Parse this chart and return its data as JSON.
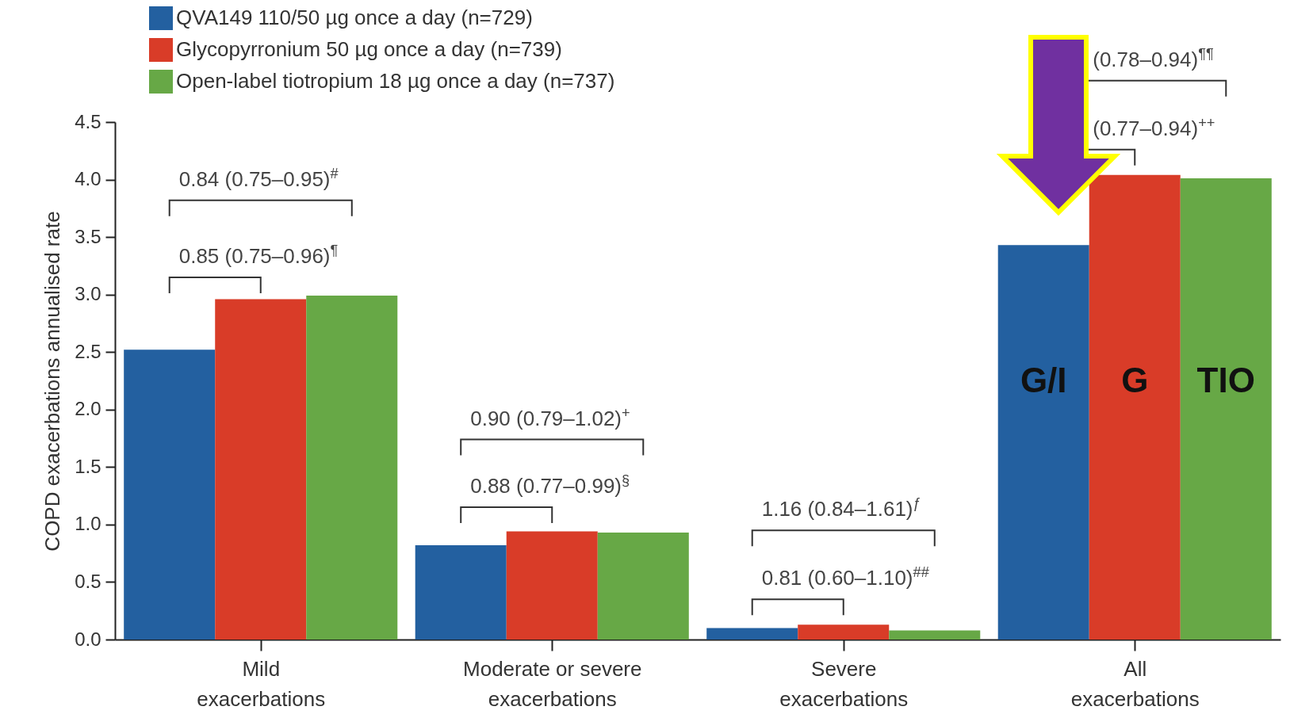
{
  "chart_data": {
    "type": "bar",
    "ylabel": "COPD exacerbations annualised rate",
    "categories": [
      "Mild exacerbations",
      "Moderate or severe exacerbations",
      "Severe exacerbations",
      "All exacerbations"
    ],
    "series": [
      {
        "name": "QVA149 110/50 µg once a day (n=729)",
        "color": "#2360a0",
        "values": [
          2.52,
          0.82,
          0.1,
          3.43
        ]
      },
      {
        "name": "Glycopyrronium 50 µg once a day (n=739)",
        "color": "#d93c28",
        "values": [
          2.96,
          0.94,
          0.13,
          4.04
        ]
      },
      {
        "name": "Open-label tiotropium 18 µg once a day (n=737)",
        "color": "#67a846",
        "values": [
          2.99,
          0.93,
          0.08,
          4.01
        ]
      }
    ],
    "ylim": [
      0,
      4.5
    ],
    "yticks": [
      {
        "value": 0,
        "label": "0.0"
      },
      0.5,
      {
        "value": 1,
        "label": "1.0"
      },
      1.5,
      {
        "value": 2,
        "label": "2.0"
      },
      2.5,
      {
        "value": 3,
        "label": "3.0"
      },
      3.5,
      {
        "value": 4,
        "label": "4.0"
      },
      4.5
    ],
    "grid": false,
    "legend": "top left",
    "annotations": [
      "0.84 (0.75–0.95)$^{#}$",
      "0.85 (0.75–0.96)$^{¶}$",
      "0.90 (0.79–1.02)$^{+}$",
      "0.88 (0.77–0.99)$^{§}$",
      "1.16 (0.84–1.61)$^{ƒ}$",
      "0.81 (0.60–1.10)$^{##}$",
      "(0.78–0.94)$^{¶¶}$",
      "(0.77–0.94)$^{++}$",
      "G/I",
      "G",
      "TIO"
    ]
  }
}
